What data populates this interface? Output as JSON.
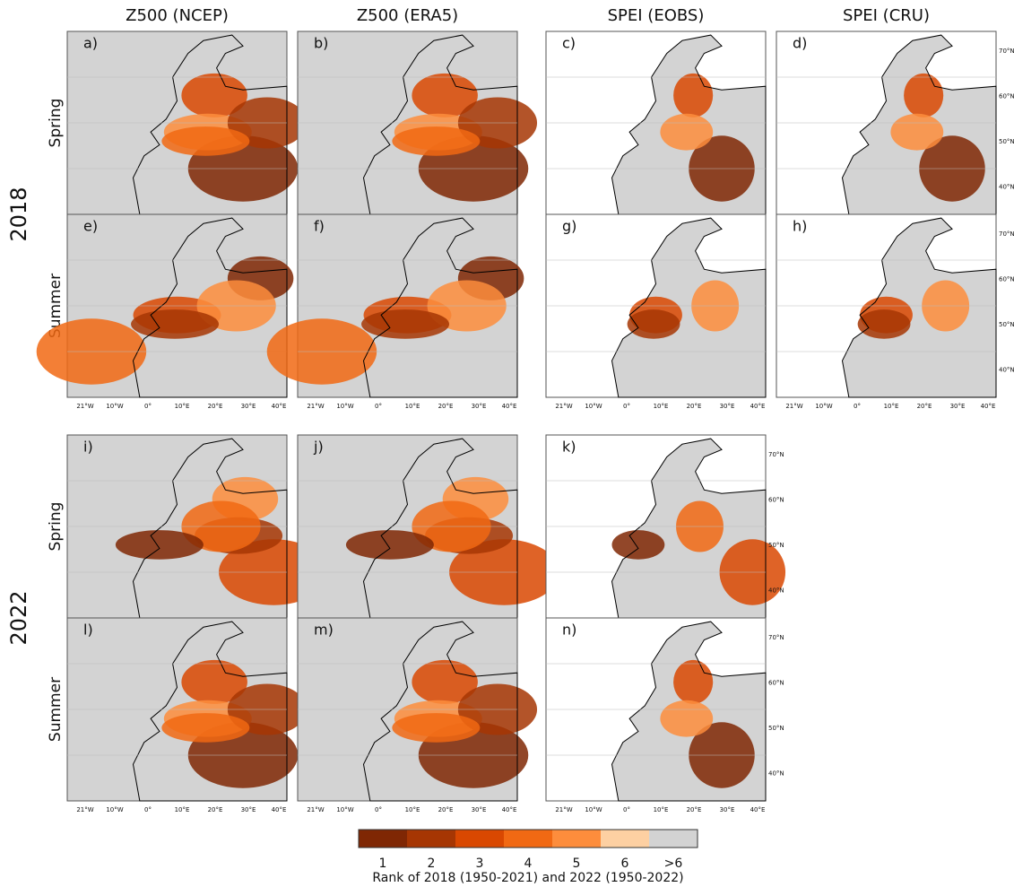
{
  "columns": [
    "Z500 (NCEP)",
    "Z500 (ERA5)",
    "SPEI (EOBS)",
    "SPEI (CRU)"
  ],
  "years": [
    {
      "label": "2018",
      "rows": [
        {
          "season": "Spring",
          "panels": [
            "a)",
            "b)",
            "c)",
            "d)"
          ]
        },
        {
          "season": "Summer",
          "panels": [
            "e)",
            "f)",
            "g)",
            "h)"
          ]
        }
      ]
    },
    {
      "label": "2022",
      "rows": [
        {
          "season": "Spring",
          "panels": [
            "i)",
            "j)",
            "k)"
          ]
        },
        {
          "season": "Summer",
          "panels": [
            "l)",
            "m)",
            "n)"
          ]
        }
      ]
    }
  ],
  "lon_ticks": [
    "21°W",
    "10°W",
    "0°",
    "10°E",
    "20°E",
    "30°E",
    "40°E"
  ],
  "lat_ticks": [
    "70°N",
    "60°N",
    "50°N",
    "40°N"
  ],
  "colorbar": {
    "labels": [
      "1",
      "2",
      "3",
      "4",
      "5",
      "6",
      ">6"
    ],
    "colors": [
      "#7f2704",
      "#a63603",
      "#d94801",
      "#f16913",
      "#fd8d3c",
      "#fdd0a2",
      "#d3d3d3"
    ],
    "title": "Rank of 2018 (1950-2021) and 2022 (1950-2022)"
  }
}
